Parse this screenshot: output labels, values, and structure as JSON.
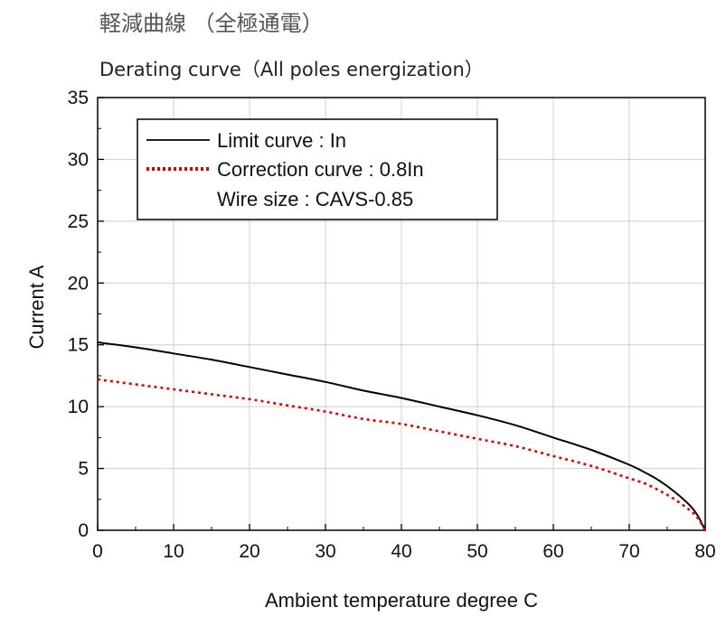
{
  "page": {
    "title_jp": "軽減曲線 （全極通電）",
    "title_en": "Derating curve（All poles energization）"
  },
  "chart_data": {
    "type": "line",
    "xlabel": "Ambient temperature  degree C",
    "ylabel": "Current  A",
    "xlim": [
      0,
      80
    ],
    "ylim": [
      0,
      35
    ],
    "xticks": [
      "0",
      "10",
      "20",
      "30",
      "40",
      "50",
      "60",
      "70",
      "80"
    ],
    "yticks": [
      "0",
      "5",
      "10",
      "15",
      "20",
      "25",
      "30",
      "35"
    ],
    "grid": true,
    "legend_position": "top-left",
    "series": [
      {
        "name": "Limit curve : In",
        "color": "#000000",
        "style": "solid",
        "x": [
          0,
          5,
          10,
          15,
          20,
          25,
          30,
          35,
          40,
          45,
          50,
          55,
          60,
          65,
          70,
          72,
          74,
          76,
          78,
          79,
          80
        ],
        "y": [
          15.2,
          14.8,
          14.3,
          13.8,
          13.2,
          12.6,
          12.0,
          11.3,
          10.7,
          10.0,
          9.3,
          8.5,
          7.5,
          6.5,
          5.3,
          4.7,
          4.0,
          3.1,
          2.0,
          1.2,
          0
        ]
      },
      {
        "name": "Correction curve : 0.8In",
        "color": "#e00000",
        "style": "dotted",
        "x": [
          0,
          5,
          10,
          15,
          20,
          25,
          30,
          35,
          40,
          45,
          50,
          55,
          60,
          65,
          70,
          72,
          74,
          76,
          78,
          79,
          80
        ],
        "y": [
          12.2,
          11.8,
          11.4,
          11.0,
          10.6,
          10.1,
          9.6,
          9.0,
          8.6,
          8.0,
          7.4,
          6.8,
          6.0,
          5.2,
          4.2,
          3.8,
          3.2,
          2.5,
          1.6,
          1.0,
          0
        ]
      }
    ],
    "legend_note": "Wire size : CAVS-0.85"
  }
}
